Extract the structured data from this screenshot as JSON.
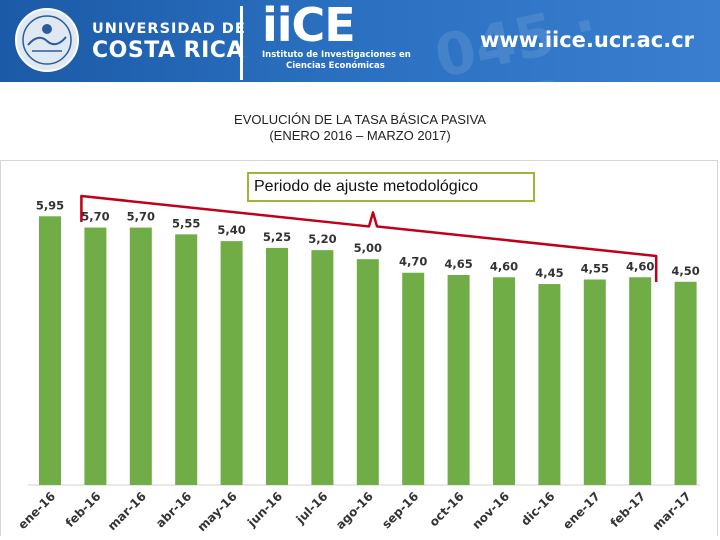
{
  "header": {
    "university_line1": "UNIVERSIDAD DE",
    "university_line2": "COSTA RICA",
    "institute_logo": "iiCE",
    "institute_name_line1": "Instituto de Investigaciones en",
    "institute_name_line2": "Ciencias Económicas",
    "website": "www.iice.ucr.ac.cr"
  },
  "title": {
    "line1": "EVOLUCIÓN DE LA TASA BÁSICA PASIVA",
    "line2": "(ENERO 2016 – MARZO 2017)"
  },
  "callout": {
    "label": "Periodo de ajuste metodológico"
  },
  "colors": {
    "banner": "#2166b3",
    "bar": "#70ad47",
    "bracket": "#c0001a",
    "callout_border": "#a4b13a"
  },
  "chart_data": {
    "type": "bar",
    "title": "EVOLUCIÓN DE LA TASA BÁSICA PASIVA (ENERO 2016 – MARZO 2017)",
    "xlabel": "",
    "ylabel": "",
    "categories": [
      "ene-16",
      "feb-16",
      "mar-16",
      "abr-16",
      "may-16",
      "jun-16",
      "jul-16",
      "ago-16",
      "sep-16",
      "oct-16",
      "nov-16",
      "dic-16",
      "ene-17",
      "feb-17",
      "mar-17"
    ],
    "values": [
      5.95,
      5.7,
      5.7,
      5.55,
      5.4,
      5.25,
      5.2,
      5.0,
      4.7,
      4.65,
      4.6,
      4.45,
      4.55,
      4.6,
      4.5
    ],
    "data_labels": [
      "5,95",
      "5,70",
      "5,70",
      "5,55",
      "5,40",
      "5,25",
      "5,20",
      "5,00",
      "4,70",
      "4,65",
      "4,60",
      "4,45",
      "4,55",
      "4,60",
      "4,50"
    ],
    "ylim": [
      0,
      6.2
    ],
    "grid": false,
    "legend": "none",
    "annotation": {
      "text": "Periodo de ajuste metodológico",
      "bracket_from": "feb-16",
      "bracket_to": "feb-17"
    }
  }
}
